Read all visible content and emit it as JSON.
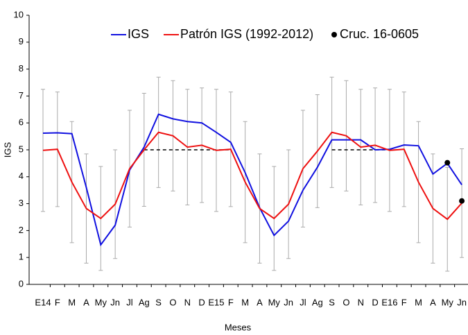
{
  "chart_data": {
    "type": "line",
    "x_label": "Meses",
    "y_label": "IGS",
    "categories": [
      "E14",
      "F",
      "M",
      "A",
      "My",
      "Jn",
      "Jl",
      "Ag",
      "S",
      "O",
      "N",
      "D",
      "E15",
      "F",
      "M",
      "A",
      "My",
      "Jn",
      "Jl",
      "Ag",
      "S",
      "O",
      "N",
      "D",
      "E16",
      "F",
      "M",
      "A",
      "My",
      "Jn"
    ],
    "series": [
      {
        "name": "IGS",
        "color": "#1010e0",
        "values": [
          5.62,
          5.63,
          5.6,
          3.6,
          1.47,
          2.2,
          4.25,
          5.1,
          6.32,
          6.15,
          6.05,
          6.0,
          5.65,
          5.28,
          4.15,
          2.85,
          1.82,
          2.35,
          3.5,
          4.35,
          5.37,
          5.37,
          5.37,
          5.0,
          5.02,
          5.18,
          5.15,
          4.1,
          4.5,
          3.7
        ]
      },
      {
        "name": "Patrón IGS (1992-2012)",
        "color": "#ee1010",
        "values": [
          4.98,
          5.02,
          3.8,
          2.82,
          2.45,
          2.98,
          4.3,
          5.0,
          5.65,
          5.52,
          5.1,
          5.17,
          4.98,
          5.02,
          3.8,
          2.82,
          2.45,
          2.98,
          4.3,
          4.95,
          5.65,
          5.52,
          5.1,
          5.17,
          4.98,
          5.02,
          3.8,
          2.82,
          2.42,
          3.02
        ],
        "errors": [
          2.27,
          2.13,
          2.25,
          2.03,
          1.93,
          2.02,
          2.17,
          2.1,
          2.05,
          2.05,
          2.15,
          2.13,
          2.27,
          2.13,
          2.25,
          2.03,
          1.93,
          2.02,
          2.17,
          2.1,
          2.05,
          2.05,
          2.15,
          2.13,
          2.27,
          2.13,
          2.25,
          2.03,
          1.93,
          2.02
        ],
        "error_color": "#aaaaaa"
      },
      {
        "name": "Cruc. 16-0605",
        "color": "#000000",
        "markers_only": true,
        "values": [
          null,
          null,
          null,
          null,
          null,
          null,
          null,
          null,
          null,
          null,
          null,
          null,
          null,
          null,
          null,
          null,
          null,
          null,
          null,
          null,
          null,
          null,
          null,
          null,
          null,
          null,
          null,
          null,
          4.52,
          3.1
        ]
      }
    ],
    "reference": {
      "color": "#000000",
      "dashed": true,
      "values": [
        null,
        null,
        null,
        null,
        null,
        null,
        null,
        5,
        5,
        5,
        5,
        5,
        5,
        5,
        null,
        null,
        null,
        null,
        null,
        null,
        5,
        5,
        5,
        5,
        5,
        null,
        null,
        null,
        null,
        null
      ]
    },
    "ylim": [
      0,
      10
    ],
    "yticks": [
      0,
      1,
      2,
      3,
      4,
      5,
      6,
      7,
      8,
      9,
      10
    ],
    "legend": "top"
  }
}
